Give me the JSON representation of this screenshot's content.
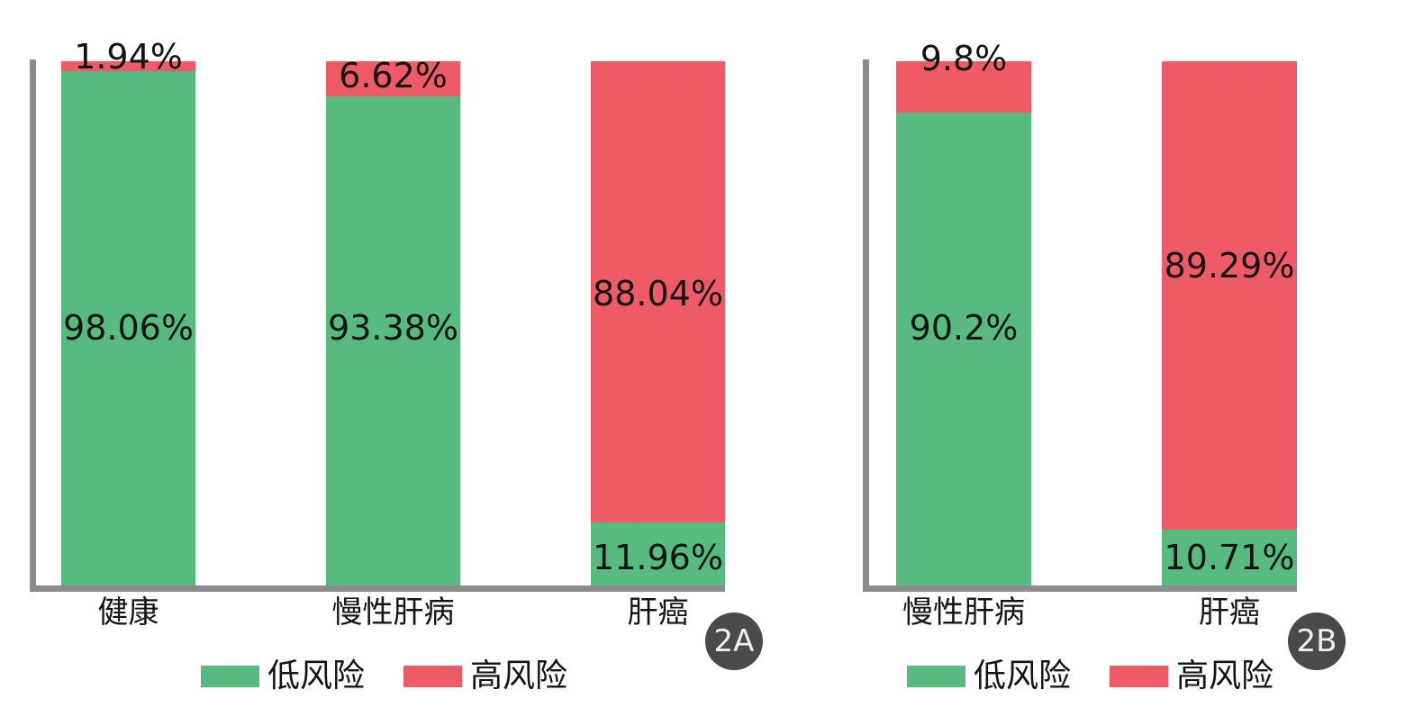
{
  "figure": {
    "background": "#ffffff"
  },
  "colors": {
    "low_risk": "#57ba7e",
    "high_risk": "#ee5a66",
    "axis": "#8c8c8c",
    "badge_bg": "#4a4a4a",
    "badge_text": "#efefef",
    "label_text": "#141414"
  },
  "chart_data": [
    {
      "type": "bar",
      "stacked": true,
      "percent_stacked": true,
      "panel_label": "2A",
      "title": "",
      "xlabel": "",
      "ylabel": "",
      "ylim": [
        0,
        100
      ],
      "grid": false,
      "legend_position": "bottom",
      "legend": [
        {
          "label": "低风险",
          "color_key": "low_risk"
        },
        {
          "label": "高风险",
          "color_key": "high_risk"
        }
      ],
      "categories": [
        "健康",
        "慢性肝病",
        "肝癌"
      ],
      "series": [
        {
          "name": "低风险",
          "values": [
            98.06,
            93.38,
            11.96
          ]
        },
        {
          "name": "高风险",
          "values": [
            1.94,
            6.62,
            88.04
          ]
        }
      ],
      "bars": [
        {
          "category": "健康",
          "segments": [
            {
              "name": "高风险",
              "pct": 1.94,
              "label": "1.94%",
              "label_center_pct": -0.7
            },
            {
              "name": "低风险",
              "pct": 98.06,
              "label": "98.06%",
              "label_center_pct": 51.0
            }
          ]
        },
        {
          "category": "慢性肝病",
          "segments": [
            {
              "name": "高风险",
              "pct": 6.62,
              "label": "6.62%",
              "label_center_pct": 3.0
            },
            {
              "name": "低风险",
              "pct": 93.38,
              "label": "93.38%",
              "label_center_pct": 51.0
            }
          ]
        },
        {
          "category": "肝癌",
          "segments": [
            {
              "name": "高风险",
              "pct": 88.04,
              "label": "88.04%",
              "label_center_pct": 44.5
            },
            {
              "name": "低风险",
              "pct": 11.96,
              "label": "11.96%",
              "label_center_pct": 94.8
            }
          ]
        }
      ]
    },
    {
      "type": "bar",
      "stacked": true,
      "percent_stacked": true,
      "panel_label": "2B",
      "title": "",
      "xlabel": "",
      "ylabel": "",
      "ylim": [
        0,
        100
      ],
      "grid": false,
      "legend_position": "bottom",
      "legend": [
        {
          "label": "低风险",
          "color_key": "low_risk"
        },
        {
          "label": "高风险",
          "color_key": "high_risk"
        }
      ],
      "categories": [
        "慢性肝病",
        "肝癌"
      ],
      "series": [
        {
          "name": "低风险",
          "values": [
            90.2,
            10.71
          ]
        },
        {
          "name": "高风险",
          "values": [
            9.8,
            89.29
          ]
        }
      ],
      "bars": [
        {
          "category": "慢性肝病",
          "segments": [
            {
              "name": "高风险",
              "pct": 9.8,
              "label": "9.8%",
              "label_center_pct": -0.3
            },
            {
              "name": "低风险",
              "pct": 90.2,
              "label": "90.2%",
              "label_center_pct": 51.0
            }
          ]
        },
        {
          "category": "肝癌",
          "segments": [
            {
              "name": "高风险",
              "pct": 89.29,
              "label": "89.29%",
              "label_center_pct": 39.2
            },
            {
              "name": "低风险",
              "pct": 10.71,
              "label": "10.71%",
              "label_center_pct": 94.8
            }
          ]
        }
      ]
    }
  ]
}
